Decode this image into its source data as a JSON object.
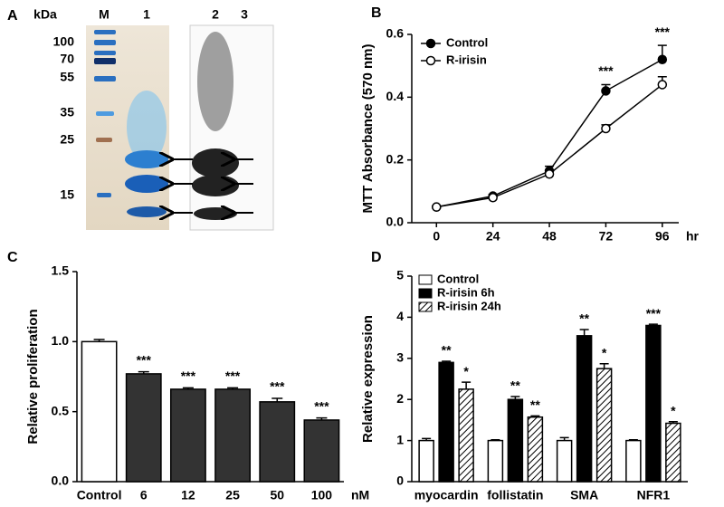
{
  "gel": {
    "panel_label": "A",
    "unit_label": "kDa",
    "marker_labels": [
      "100",
      "70",
      "55",
      "35",
      "25",
      "15"
    ],
    "lane_labels": [
      "M",
      "1",
      "2",
      "3"
    ]
  },
  "chart_data": [
    {
      "type": "line",
      "panel_label": "B",
      "y_label": "MTT Absorbance (570 nm)",
      "x_unit": "hr",
      "x": [
        0,
        24,
        48,
        72,
        96
      ],
      "xlim": [
        -10.5,
        103
      ],
      "xticks": [
        0,
        24,
        48,
        72,
        96
      ],
      "ylim": [
        0,
        0.6
      ],
      "yticks": [
        {
          "value": 0,
          "label": "0.0"
        },
        0.2,
        0.4,
        0.6
      ],
      "series": [
        {
          "name": "Control",
          "color": "#000000",
          "marker_fill": "#000000",
          "values": [
            0.05,
            0.085,
            0.165,
            0.42,
            0.52
          ],
          "errors": [
            0.003,
            0.005,
            0.015,
            0.02,
            0.045
          ]
        },
        {
          "name": "R-irisin",
          "color": "#000000",
          "marker_fill": "#ffffff",
          "values": [
            0.05,
            0.08,
            0.155,
            0.3,
            0.44
          ],
          "errors": [
            0.003,
            0.005,
            0.01,
            0.012,
            0.025
          ]
        }
      ],
      "significance": [
        null,
        null,
        null,
        "***",
        "***"
      ],
      "legend": "upper left"
    },
    {
      "type": "bar",
      "panel_label": "C",
      "y_label": "Relative proliferation",
      "x_unit": "nM",
      "categories": [
        "Control",
        "6",
        "12",
        "25",
        "50",
        "100"
      ],
      "values": [
        1.0,
        0.77,
        0.66,
        0.66,
        0.57,
        0.44
      ],
      "errors": [
        0.015,
        0.015,
        0.01,
        0.01,
        0.025,
        0.015
      ],
      "colors": [
        "#ffffff",
        "#333333",
        "#333333",
        "#333333",
        "#333333",
        "#333333"
      ],
      "significance": [
        null,
        "***",
        "***",
        "***",
        "***",
        "***"
      ],
      "ylim": [
        0,
        1.5
      ],
      "yticks": [
        {
          "value": 0,
          "label": "0.0"
        },
        0.5,
        {
          "value": 1,
          "label": "1.0"
        },
        1.5
      ]
    },
    {
      "type": "grouped_bar",
      "panel_label": "D",
      "y_label": "Relative expression",
      "categories": [
        "myocardin",
        "follistatin",
        "SMA",
        "NFR1"
      ],
      "ylim": [
        0,
        5
      ],
      "yticks": [
        0,
        1,
        2,
        3,
        4,
        5
      ],
      "legend": "upper left",
      "series": [
        {
          "name": "Control",
          "color": "#ffffff",
          "pattern": "solid",
          "values": [
            1.0,
            1.0,
            1.0,
            1.0
          ],
          "errors": [
            0.05,
            0.02,
            0.07,
            0.02
          ],
          "significance": [
            null,
            null,
            null,
            null
          ]
        },
        {
          "name": "R-irisin 6h",
          "color": "#000000",
          "pattern": "solid",
          "values": [
            2.9,
            2.0,
            3.55,
            3.8
          ],
          "errors": [
            0.03,
            0.07,
            0.15,
            0.03
          ],
          "significance": [
            "**",
            "**",
            "**",
            "***"
          ]
        },
        {
          "name": "R-irisin 24h",
          "color": "#ffffff",
          "pattern": "hatch",
          "values": [
            2.25,
            1.57,
            2.75,
            1.42
          ],
          "errors": [
            0.17,
            0.03,
            0.12,
            0.04
          ],
          "significance": [
            "*",
            "**",
            "*",
            "*"
          ]
        }
      ]
    }
  ]
}
